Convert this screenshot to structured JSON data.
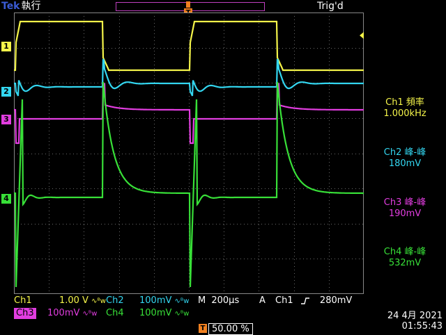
{
  "header": {
    "brand": "Tek",
    "run_state": "執行",
    "trigger_state": "Trig'd"
  },
  "colors": {
    "ch1": "#f5f54a",
    "ch2": "#33d6f0",
    "ch3": "#e23de0",
    "ch4": "#38e038",
    "trigger_marker": "#f08020",
    "grid": "#808080"
  },
  "markers": {
    "ch1": "1",
    "ch2": "2",
    "ch3": "3",
    "ch4": "4",
    "trigger": "T"
  },
  "measurements": [
    {
      "label": "Ch1 頻率",
      "value": "1.000kHz"
    },
    {
      "label": "Ch2 峰-峰",
      "value": "180mV"
    },
    {
      "label": "Ch3 峰-峰",
      "value": "190mV"
    },
    {
      "label": "Ch4 峰-峰",
      "value": "532mV"
    }
  ],
  "scales": {
    "ch1": {
      "name": "Ch1",
      "value": "1.00 V"
    },
    "ch2": {
      "name": "Ch2",
      "value": "100mV"
    },
    "ch3": {
      "name": "Ch3",
      "value": "100mV"
    },
    "ch4": {
      "name": "Ch4",
      "value": "100mV"
    },
    "bw_icon": "∿ᴮw"
  },
  "timebase": {
    "label": "M",
    "value": "200µs"
  },
  "trigger": {
    "mode": "A",
    "source": "Ch1",
    "slope_icon": "rising-edge-icon",
    "level": "280mV",
    "position": "50.00 %"
  },
  "datetime": {
    "date": "24 4月  2021",
    "time": "01:55:43"
  }
}
